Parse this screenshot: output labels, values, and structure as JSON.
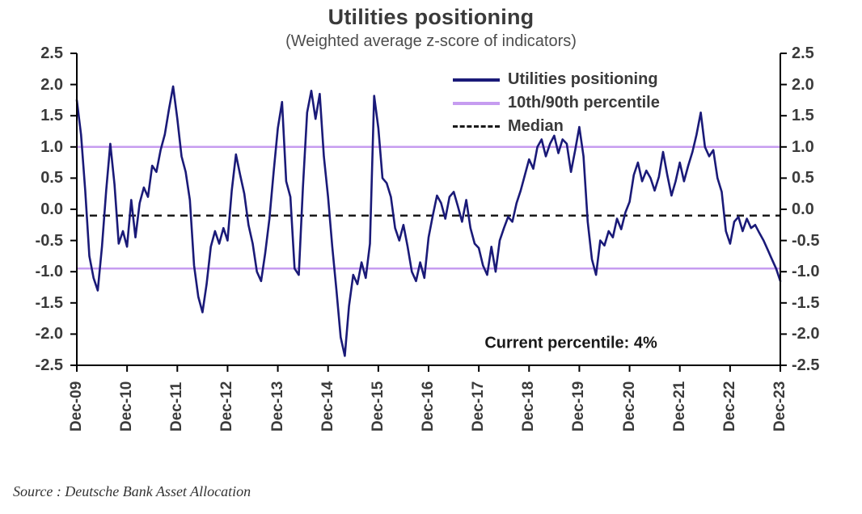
{
  "title": "Utilities positioning",
  "subtitle": "(Weighted average z-score of indicators)",
  "annotation": "Current percentile: 4%",
  "source": "Source : Deutsche Bank Asset Allocation",
  "colors": {
    "series": "#1a1a78",
    "percentile": "#c69cf0",
    "median": "#1a1a1a",
    "axis": "#000000",
    "text": "#3b3b3b"
  },
  "legend": [
    {
      "label": "Utilities positioning",
      "color": "#1a1a78",
      "style": "solid"
    },
    {
      "label": "10th/90th percentile",
      "color": "#c69cf0",
      "style": "solid"
    },
    {
      "label": "Median",
      "color": "#1a1a1a",
      "style": "dashed"
    }
  ],
  "chart_data": {
    "type": "line",
    "title": "Utilities positioning",
    "subtitle": "(Weighted average z-score of indicators)",
    "ylabel": "Weighted average z-score",
    "ylim": [
      -2.5,
      2.5
    ],
    "y_ticks": [
      2.5,
      2.0,
      1.5,
      1.0,
      0.5,
      0.0,
      -0.5,
      -1.0,
      -1.5,
      -2.0,
      -2.5
    ],
    "x_tick_labels": [
      "Dec-09",
      "Dec-10",
      "Dec-11",
      "Dec-12",
      "Dec-13",
      "Dec-14",
      "Dec-15",
      "Dec-16",
      "Dec-17",
      "Dec-18",
      "Dec-19",
      "Dec-20",
      "Dec-21",
      "Dec-22",
      "Dec-23"
    ],
    "x_tick_positions": [
      0,
      12,
      24,
      36,
      48,
      60,
      72,
      84,
      96,
      108,
      120,
      132,
      144,
      156,
      168
    ],
    "x_unit": "months since Dec-2009, monthly estimates read from plot",
    "grid": false,
    "legend_position": "top-center-inside",
    "reference_lines": {
      "percentile_upper": 1.0,
      "percentile_lower": -0.95,
      "median": -0.1
    },
    "percentile_color": "#c69cf0",
    "median_color": "#1a1a1a",
    "annotation": {
      "text": "Current percentile: 4%",
      "x_month": 118,
      "y": -2.15
    },
    "series": [
      {
        "name": "Utilities positioning",
        "color": "#1a1a78",
        "values": [
          1.75,
          1.2,
          0.3,
          -0.75,
          -1.1,
          -1.3,
          -0.6,
          0.3,
          1.05,
          0.4,
          -0.55,
          -0.35,
          -0.6,
          0.15,
          -0.45,
          0.1,
          0.35,
          0.2,
          0.7,
          0.6,
          0.95,
          1.2,
          1.6,
          1.97,
          1.45,
          0.85,
          0.6,
          0.15,
          -0.9,
          -1.4,
          -1.65,
          -1.2,
          -0.6,
          -0.35,
          -0.55,
          -0.3,
          -0.5,
          0.3,
          0.88,
          0.55,
          0.25,
          -0.25,
          -0.55,
          -1.0,
          -1.15,
          -0.7,
          -0.15,
          0.6,
          1.3,
          1.72,
          0.45,
          0.2,
          -0.95,
          -1.05,
          0.35,
          1.55,
          1.9,
          1.45,
          1.85,
          0.85,
          0.2,
          -0.6,
          -1.3,
          -2.05,
          -2.35,
          -1.55,
          -1.05,
          -1.2,
          -0.85,
          -1.1,
          -0.55,
          1.82,
          1.3,
          0.5,
          0.42,
          0.2,
          -0.3,
          -0.5,
          -0.25,
          -0.6,
          -1.0,
          -1.15,
          -0.85,
          -1.1,
          -0.45,
          -0.1,
          0.22,
          0.1,
          -0.15,
          0.2,
          0.28,
          0.05,
          -0.2,
          0.15,
          -0.3,
          -0.55,
          -0.62,
          -0.9,
          -1.05,
          -0.6,
          -1.0,
          -0.5,
          -0.3,
          -0.12,
          -0.2,
          0.1,
          0.3,
          0.55,
          0.8,
          0.65,
          1.0,
          1.12,
          0.85,
          1.05,
          1.18,
          0.9,
          1.12,
          1.05,
          0.6,
          0.95,
          1.32,
          0.85,
          -0.2,
          -0.8,
          -1.05,
          -0.5,
          -0.58,
          -0.35,
          -0.45,
          -0.15,
          -0.32,
          -0.05,
          0.12,
          0.55,
          0.75,
          0.45,
          0.62,
          0.5,
          0.3,
          0.52,
          0.92,
          0.55,
          0.22,
          0.45,
          0.75,
          0.45,
          0.7,
          0.92,
          1.2,
          1.55,
          1.0,
          0.85,
          0.95,
          0.5,
          0.28,
          -0.35,
          -0.55,
          -0.2,
          -0.12,
          -0.35,
          -0.15,
          -0.3,
          -0.25,
          -0.38,
          -0.5,
          -0.65,
          -0.8,
          -0.95,
          -1.15
        ]
      }
    ]
  }
}
